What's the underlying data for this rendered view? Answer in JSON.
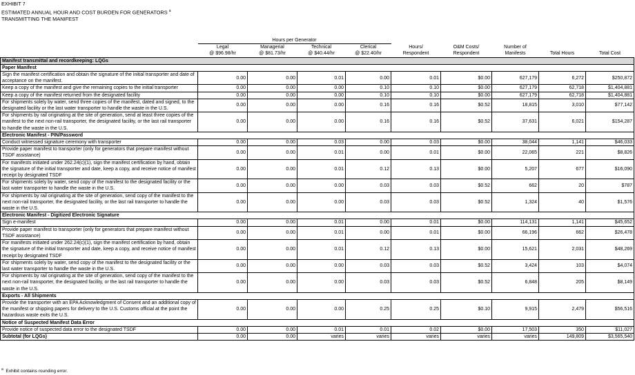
{
  "header": {
    "exhibit": "EXHIBIT 7",
    "title": "ESTIMATED ANNUAL HOUR AND COST BURDEN FOR GENERATORS",
    "title_note": "a",
    "subtitle": "TRANSMITTING THE MANIFEST"
  },
  "table": {
    "group_header": "Hours per Generator",
    "columns": [
      [
        "Legal",
        "@ $96.98/hr"
      ],
      [
        "Managerial",
        "@ $81.73/hr"
      ],
      [
        "Technical",
        "@ $40.44/hr"
      ],
      [
        "Clerical",
        "@ $22.40/hr"
      ],
      [
        "Hours/",
        "Respondent"
      ],
      [
        "O&M Costs/",
        "Respondent"
      ],
      [
        "Number of",
        "Manifests"
      ],
      [
        "Total Hours"
      ],
      [
        "Total Cost"
      ]
    ],
    "section": "Manifest transmittal and recordkeeping:  LQGs",
    "groups": [
      {
        "title": "Paper Manifest",
        "rows": [
          {
            "label": "Sign the manifest certification and obtain the signature of the initial transporter and date of acceptance on the manifest.",
            "cells": [
              "0.00",
              "0.00",
              "0.01",
              "0.00",
              "0.01",
              "$0.00",
              "627,179",
              "6,272",
              "$250,872"
            ]
          },
          {
            "label": "Keep a copy of the manifest and give the remaining copies to the initial transporter",
            "cells": [
              "0.00",
              "0.00",
              "0.00",
              "0.10",
              "0.10",
              "$0.00",
              "627,179",
              "62,718",
              "$1,404,881"
            ]
          },
          {
            "label": "Keep a copy of the manifest returned from the designated facility",
            "cells": [
              "0.00",
              "0.00",
              "0.00",
              "0.10",
              "0.10",
              "$0.00",
              "627,179",
              "62,718",
              "$1,404,881"
            ]
          },
          {
            "label": "For shipments solely by water, send three copies of the manifest, dated and signed, to the designated facility or the last water transporter to handle the waste in the U.S.",
            "cells": [
              "0.00",
              "0.00",
              "0.00",
              "0.16",
              "0.16",
              "$0.52",
              "18,815",
              "3,010",
              "$77,142"
            ]
          },
          {
            "label": "For shipments by rail originating at the site of generation, send at least three copies of the manifest to the next non-rail transporter, the designated facility, or the last rail transporter to handle the waste in the U.S.",
            "cells": [
              "0.00",
              "0.00",
              "0.00",
              "0.16",
              "0.16",
              "$0.52",
              "37,631",
              "6,021",
              "$154,287"
            ]
          }
        ]
      },
      {
        "title": "Electronic Manifest - PIN/Password",
        "rows": [
          {
            "label": "Conduct witnessed signature ceremony with transporter",
            "cells": [
              "0.00",
              "0.00",
              "0.03",
              "0.00",
              "0.03",
              "$0.00",
              "38,044",
              "1,141",
              "$46,033"
            ]
          },
          {
            "label": "Provide paper manifest to transporter (only for generators that prepare manifest without TSDF assistance)",
            "cells": [
              "0.00",
              "0.00",
              "0.01",
              "0.00",
              "0.01",
              "$0.00",
              "22,065",
              "221",
              "$8,826"
            ]
          },
          {
            "label": "For manifests initiated under 262.24(c)(1), sign the manifest certification by hand, obtain the signature of the initial transporter and date, keep a copy, and receive notice of manifest receipt by designated TSDF",
            "cells": [
              "0.00",
              "0.00",
              "0.01",
              "0.12",
              "0.13",
              "$0.00",
              "5,207",
              "677",
              "$16,090"
            ]
          },
          {
            "label": "For shipments solely by water, send copy of the manifest to the designated facility or the last water transporter to handle the waste in the U.S.",
            "cells": [
              "0.00",
              "0.00",
              "0.00",
              "0.03",
              "0.03",
              "$0.52",
              "662",
              "20",
              "$787"
            ]
          },
          {
            "label": "For shipments by rail originating at the site of generation, send copy of the manifest to the next non-rail transporter, the designated facility, or the last rail transporter to handle the waste in the U.S.",
            "cells": [
              "0.00",
              "0.00",
              "0.00",
              "0.03",
              "0.03",
              "$0.52",
              "1,324",
              "40",
              "$1,576"
            ]
          }
        ]
      },
      {
        "title": "Electronic Manifest - Digitized Electronic Signature",
        "rows": [
          {
            "label": "Sign e-manifest",
            "cells": [
              "0.00",
              "0.00",
              "0.01",
              "0.00",
              "0.01",
              "$0.00",
              "114,131",
              "1,141",
              "$45,652"
            ]
          },
          {
            "label": "Provide paper manifest to transporter (only for generators that prepare manifest without TSDF assistance)",
            "cells": [
              "0.00",
              "0.00",
              "0.01",
              "0.00",
              "0.01",
              "$0.00",
              "66,196",
              "662",
              "$26,478"
            ]
          },
          {
            "label": "For manifests initiated under 262.24(c)(1), sign the manifest certification by hand, obtain the signature of the initial transporter and date, keep a copy, and receive notice of manifest receipt by designated TSDF",
            "cells": [
              "0.00",
              "0.00",
              "0.01",
              "0.12",
              "0.13",
              "$0.00",
              "15,621",
              "2,031",
              "$48,269"
            ]
          },
          {
            "label": "For shipments solely by water, send copy of the manifest to the designated facility or the last water transporter to handle the waste in the U.S.",
            "cells": [
              "0.00",
              "0.00",
              "0.00",
              "0.03",
              "0.03",
              "$0.52",
              "3,424",
              "103",
              "$4,074"
            ]
          },
          {
            "label": "For shipments by rail originating at the site of generation, send copy of the manifest to the next non-rail transporter, the designated facility, or the last rail transporter to handle the waste in the U.S.",
            "cells": [
              "0.00",
              "0.00",
              "0.00",
              "0.03",
              "0.03",
              "$0.52",
              "6,848",
              "205",
              "$8,149"
            ]
          }
        ]
      },
      {
        "title": "Exports - All Shipments",
        "rows": [
          {
            "label": "Provide the transporter with an EPA Acknowledgment of Consent and an additional copy of the manifest or shipping papers for delivery to the U.S. Customs official at the point the hazardous waste exits the U.S.",
            "cells": [
              "0.00",
              "0.00",
              "0.00",
              "0.25",
              "0.25",
              "$0.10",
              "9,915",
              "2,479",
              "$56,516"
            ]
          }
        ]
      },
      {
        "title": "Notice of Suspected Manifest Data Error",
        "rows": [
          {
            "label": "Provide notice of suspected data error to the designated TSDF",
            "cells": [
              "0.00",
              "0.00",
              "0.01",
              "0.01",
              "0.02",
              "$0.00",
              "17,503",
              "350",
              "$11,027"
            ]
          }
        ]
      }
    ],
    "subtotal": {
      "label": "Subtotal (for LQGs)",
      "cells": [
        "0.00",
        "0.00",
        "varies",
        "varies",
        "varies",
        "varies",
        "varies",
        "149,809",
        "$3,565,540"
      ]
    }
  },
  "footnote": {
    "marker": "a",
    "text": "Exhibit contains rounding error."
  }
}
